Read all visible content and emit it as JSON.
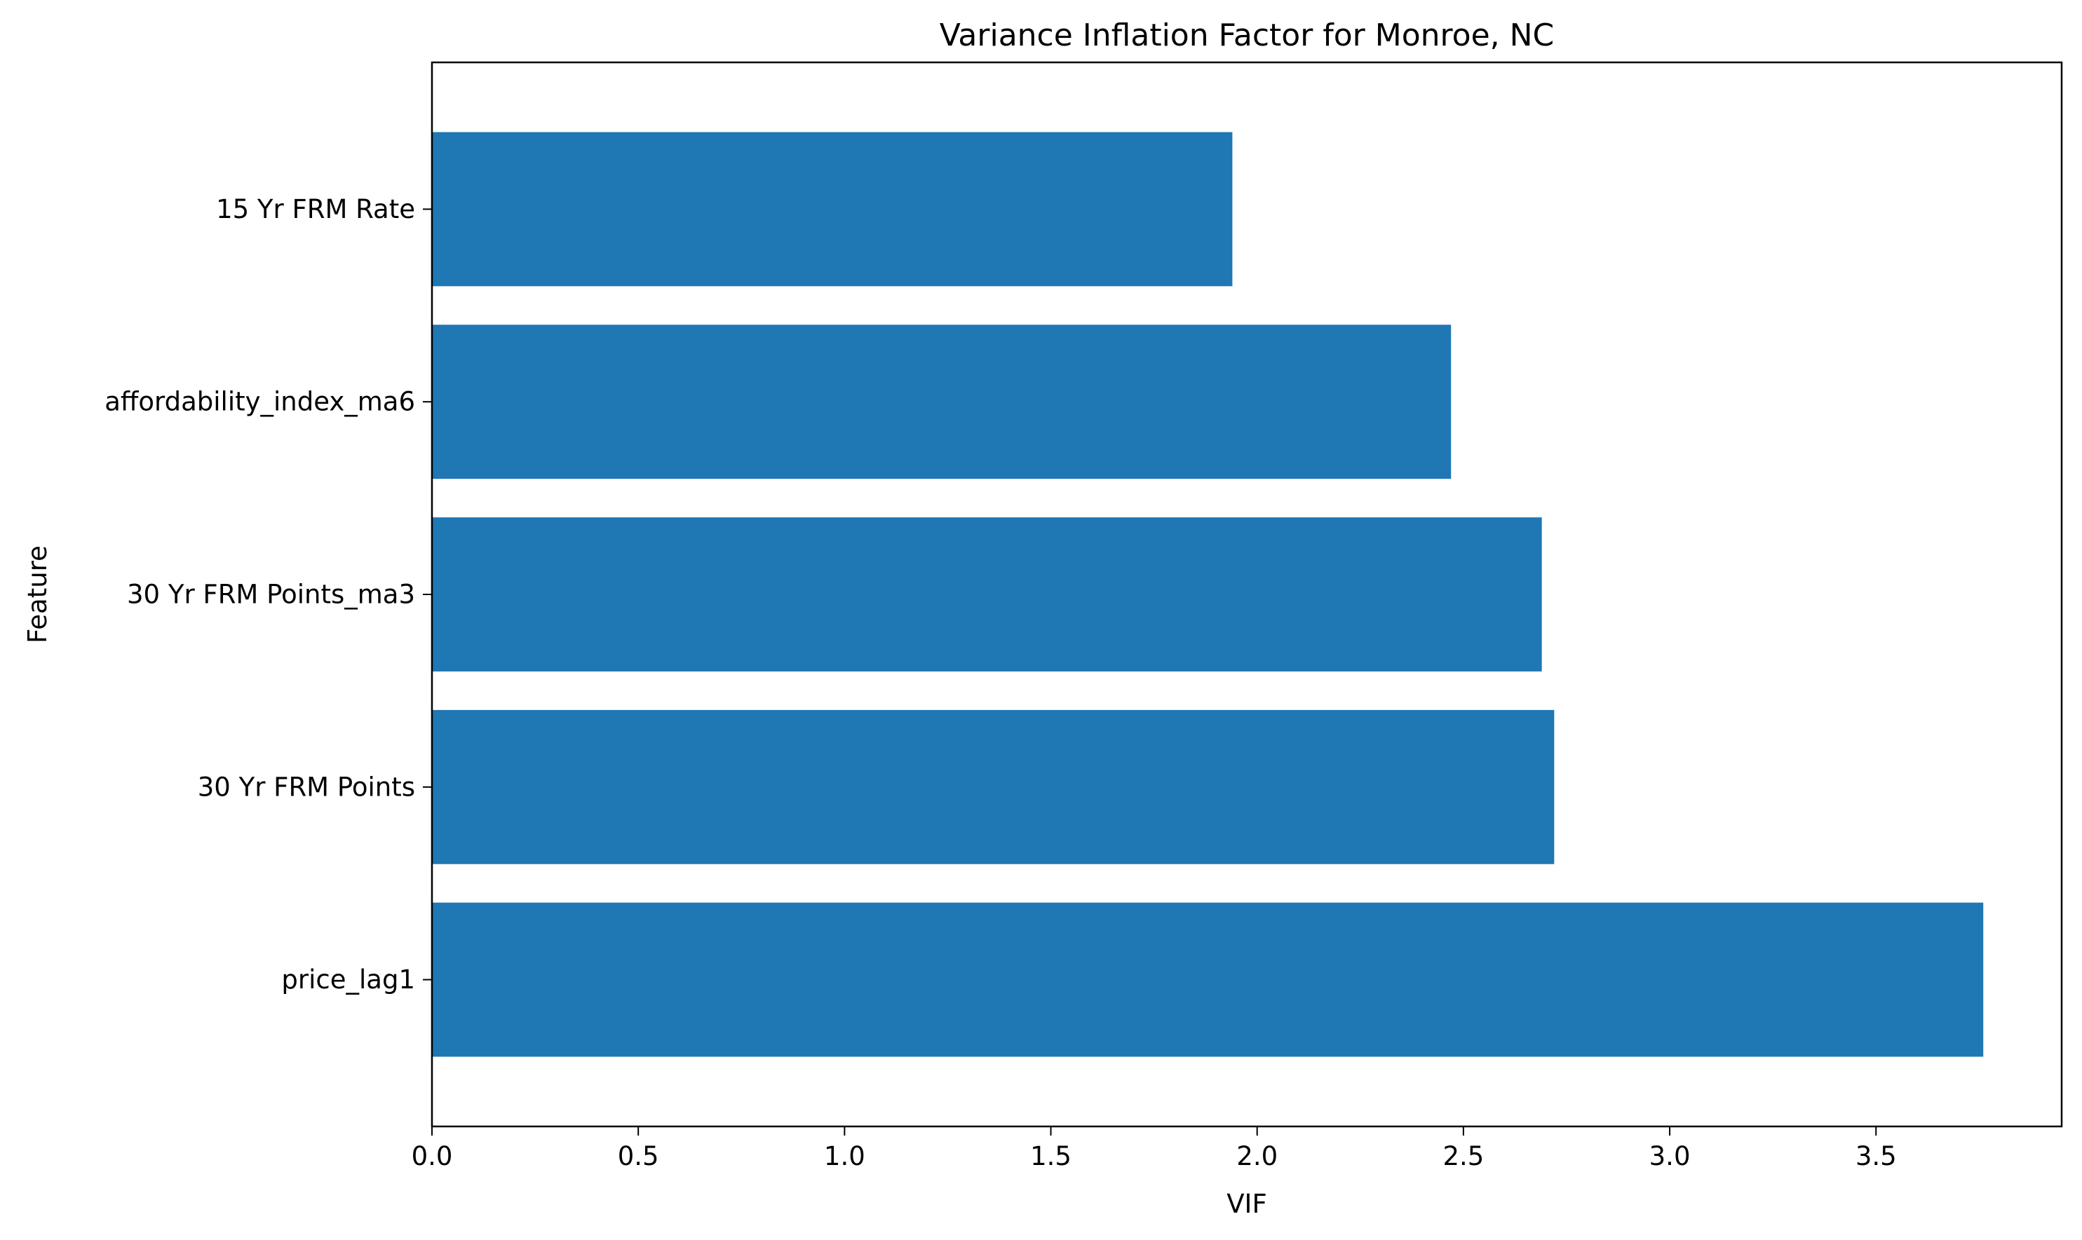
{
  "chart_data": {
    "type": "bar",
    "orientation": "horizontal",
    "title": "Variance Inflation Factor for Monroe, NC",
    "xlabel": "VIF",
    "ylabel": "Feature",
    "categories": [
      "15 Yr FRM Rate",
      "affordability_index_ma6",
      "30 Yr FRM Points_ma3",
      "30 Yr FRM Points",
      "price_lag1"
    ],
    "values": [
      1.94,
      2.47,
      2.69,
      2.72,
      3.76
    ],
    "xlim": [
      0,
      3.95
    ],
    "xticks": [
      "0.0",
      "0.5",
      "1.0",
      "1.5",
      "2.0",
      "2.5",
      "3.0",
      "3.5"
    ],
    "bar_color": "#1f77b4",
    "grid": false,
    "legend": "none"
  }
}
